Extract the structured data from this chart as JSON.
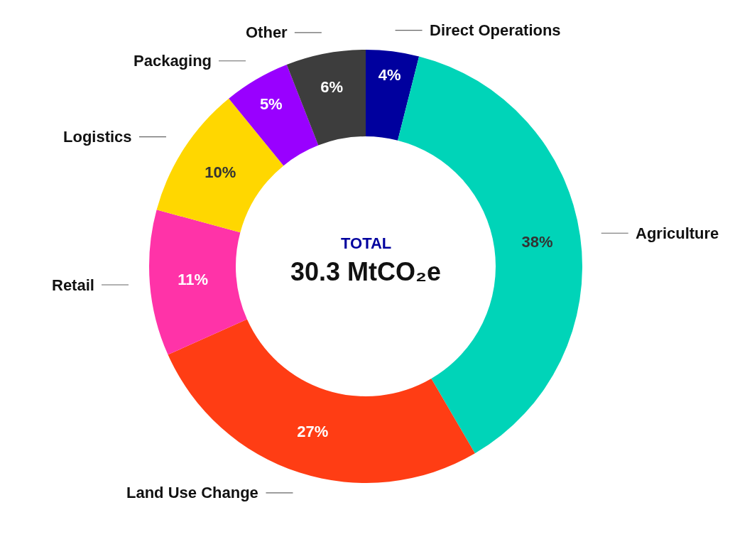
{
  "chart_data": {
    "type": "donut",
    "categories": [
      "Direct Operations",
      "Agriculture",
      "Land Use Change",
      "Retail",
      "Logistics",
      "Packaging",
      "Other"
    ],
    "values": [
      4,
      38,
      27,
      11,
      10,
      5,
      6
    ],
    "colors": [
      "#00009e",
      "#00d4b8",
      "#ff3d14",
      "#ff33a8",
      "#ffd700",
      "#9900ff",
      "#3d3d3d"
    ],
    "value_labels": [
      "4%",
      "38%",
      "27%",
      "11%",
      "10%",
      "5%",
      "6%"
    ],
    "legend": false,
    "annotations": [
      "TOTAL",
      "30.3 MtCO₂e"
    ]
  }
}
